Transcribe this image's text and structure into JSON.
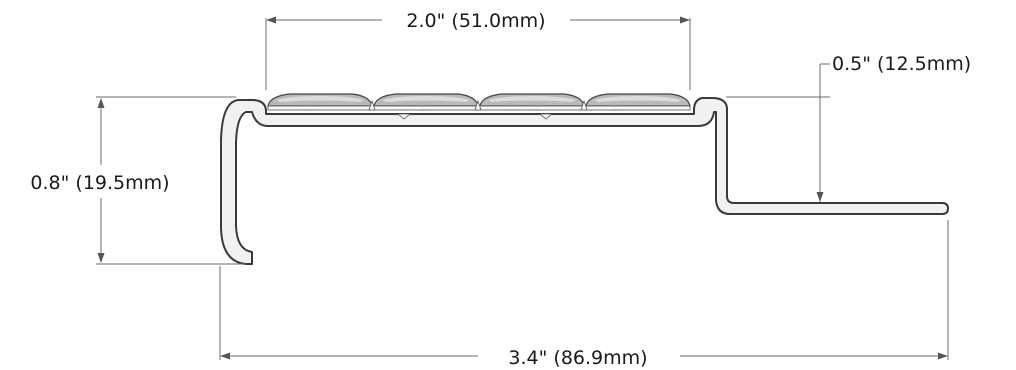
{
  "diagram": {
    "dimensions": {
      "tread_width": "2.0\" (51.0mm)",
      "step_drop": "0.5\" (12.5mm)",
      "nose_height": "0.8\" (19.5mm)",
      "overall_depth": "3.4\" (86.9mm)"
    },
    "colors": {
      "outline": "#3a3a3a",
      "body_fill": "#f1f1ef",
      "insert_fill": "#b9b9b9",
      "dimension_line": "#6b6b6b"
    },
    "icons": [
      "stair-nosing-profile"
    ]
  }
}
